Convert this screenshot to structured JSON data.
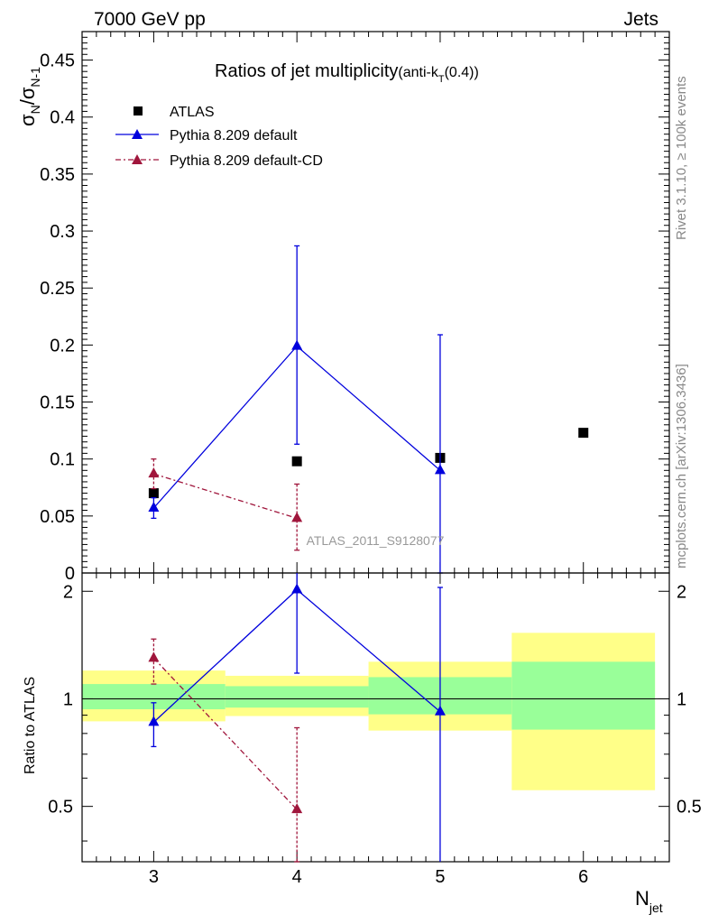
{
  "header": {
    "left": "7000 GeV pp",
    "right": "Jets"
  },
  "side_labels": {
    "rivet": "Rivet 3.1.10, ≥ 100k events",
    "mcplots": "mcplots.cern.ch [arXiv:1306.3436]"
  },
  "chart_data": [
    {
      "type": "scatter",
      "title": "Ratios of jet multiplicity",
      "title_suffix": "(anti-k",
      "title_sub": "T",
      "title_tail": "(0.4))",
      "ylabel_main": "σ",
      "ylabel_sub1": "N",
      "ylabel_mid": "/σ",
      "ylabel_sub2": "N-1",
      "watermark": "ATLAS_2011_S9128077",
      "xlim": [
        2.5,
        6.6
      ],
      "ylim": [
        0,
        0.475
      ],
      "yticks": [
        0,
        0.05,
        0.1,
        0.15,
        0.2,
        0.25,
        0.3,
        0.35,
        0.4,
        0.45
      ],
      "ytick_labels": [
        "0",
        "0.05",
        "0.1",
        "0.15",
        "0.2",
        "0.25",
        "0.3",
        "0.35",
        "0.4",
        "0.45"
      ],
      "series": [
        {
          "name": "ATLAS",
          "color": "#000000",
          "x": [
            3,
            4,
            5,
            6
          ],
          "y": [
            0.07,
            0.098,
            0.101,
            0.123
          ]
        },
        {
          "name": "Pythia 8.209 default",
          "color": "#0000dd",
          "x": [
            3,
            4,
            5
          ],
          "y": [
            0.057,
            0.199,
            0.09
          ],
          "err_lo": [
            0.048,
            0.113,
            0.0
          ],
          "err_hi": [
            0.066,
            0.287,
            0.209
          ]
        },
        {
          "name": "Pythia 8.209 default-CD",
          "color": "#a0163c",
          "x": [
            3,
            4
          ],
          "y": [
            0.087,
            0.048
          ],
          "err_lo": [
            0.074,
            0.02
          ],
          "err_hi": [
            0.1,
            0.078
          ]
        }
      ]
    },
    {
      "type": "scatter",
      "ylabel": "Ratio to ATLAS",
      "xlabel_main": "N",
      "xlabel_sub": "jet",
      "xlim": [
        2.5,
        6.6
      ],
      "ylim": [
        0.35,
        2.25
      ],
      "yscale": "log",
      "yticks": [
        0.5,
        1,
        2
      ],
      "ytick_labels": [
        "0.5",
        "1",
        "2"
      ],
      "xticks": [
        3,
        4,
        5,
        6
      ],
      "xtick_labels": [
        "3",
        "4",
        "5",
        "6"
      ],
      "bands": [
        {
          "x0": 2.5,
          "x1": 3.5,
          "green": [
            0.935,
            1.1
          ],
          "yellow": [
            0.865,
            1.2
          ]
        },
        {
          "x0": 3.5,
          "x1": 4.5,
          "green": [
            0.945,
            1.085
          ],
          "yellow": [
            0.895,
            1.16
          ]
        },
        {
          "x0": 4.5,
          "x1": 5.5,
          "green": [
            0.905,
            1.15
          ],
          "yellow": [
            0.815,
            1.27
          ]
        },
        {
          "x0": 5.5,
          "x1": 6.5,
          "green": [
            0.82,
            1.27
          ],
          "yellow": [
            0.555,
            1.53
          ]
        }
      ],
      "series": [
        {
          "name": "Pythia 8.209 default",
          "color": "#0000dd",
          "x": [
            3,
            4,
            5
          ],
          "y": [
            0.86,
            2.02,
            0.92
          ],
          "err_lo": [
            0.735,
            1.18,
            0.3
          ],
          "err_hi": [
            0.975,
            2.3,
            2.05
          ]
        },
        {
          "name": "Pythia 8.209 default-CD",
          "color": "#a0163c",
          "x": [
            3,
            4
          ],
          "y": [
            1.3,
            0.49
          ],
          "err_lo": [
            1.1,
            0.35
          ],
          "err_hi": [
            1.47,
            0.83
          ]
        }
      ]
    }
  ]
}
